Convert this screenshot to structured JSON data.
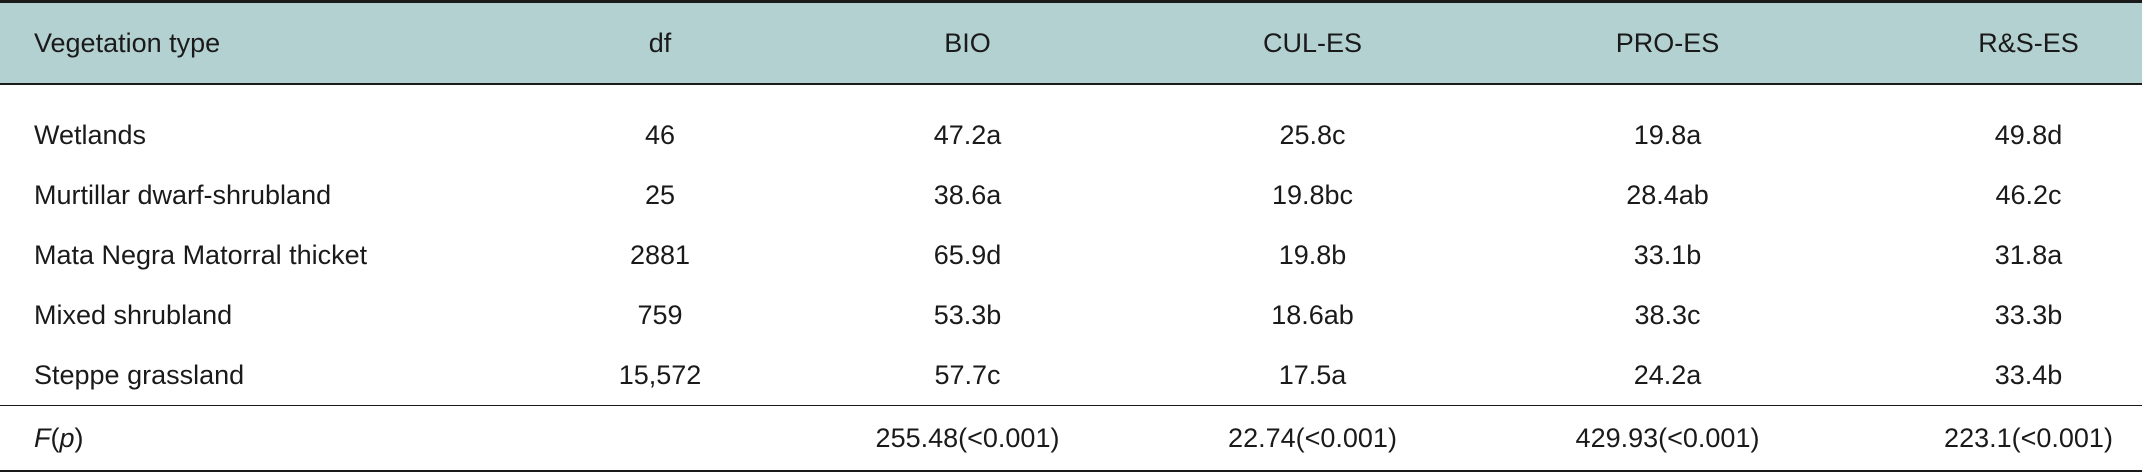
{
  "table": {
    "headers": [
      "Vegetation type",
      "df",
      "BIO",
      "CUL-ES",
      "PRO-ES",
      "R&S-ES"
    ],
    "rows": [
      {
        "type": "Wetlands",
        "df": "46",
        "bio": "47.2a",
        "cul": "25.8c",
        "pro": "19.8a",
        "rse": "49.8d"
      },
      {
        "type": "Murtillar dwarf-shrubland",
        "df": "25",
        "bio": "38.6a",
        "cul": "19.8bc",
        "pro": "28.4ab",
        "rse": "46.2c"
      },
      {
        "type": "Mata Negra Matorral thicket",
        "df": "2881",
        "bio": "65.9d",
        "cul": "19.8b",
        "pro": "33.1b",
        "rse": "31.8a"
      },
      {
        "type": "Mixed shrubland",
        "df": "759",
        "bio": "53.3b",
        "cul": "18.6ab",
        "pro": "38.3c",
        "rse": "33.3b"
      },
      {
        "type": "Steppe grassland",
        "df": "15,572",
        "bio": "57.7c",
        "cul": "17.5a",
        "pro": "24.2a",
        "rse": "33.4b"
      }
    ],
    "f_row": {
      "label_f": "F",
      "label_open": "(",
      "label_p": "p",
      "label_close": ")",
      "df": "",
      "bio": "255.48(<0.001)",
      "cul": "22.74(<0.001)",
      "pro": "429.93(<0.001)",
      "rse": "223.1(<0.001)"
    },
    "header_bg": "#b4d1d2"
  }
}
